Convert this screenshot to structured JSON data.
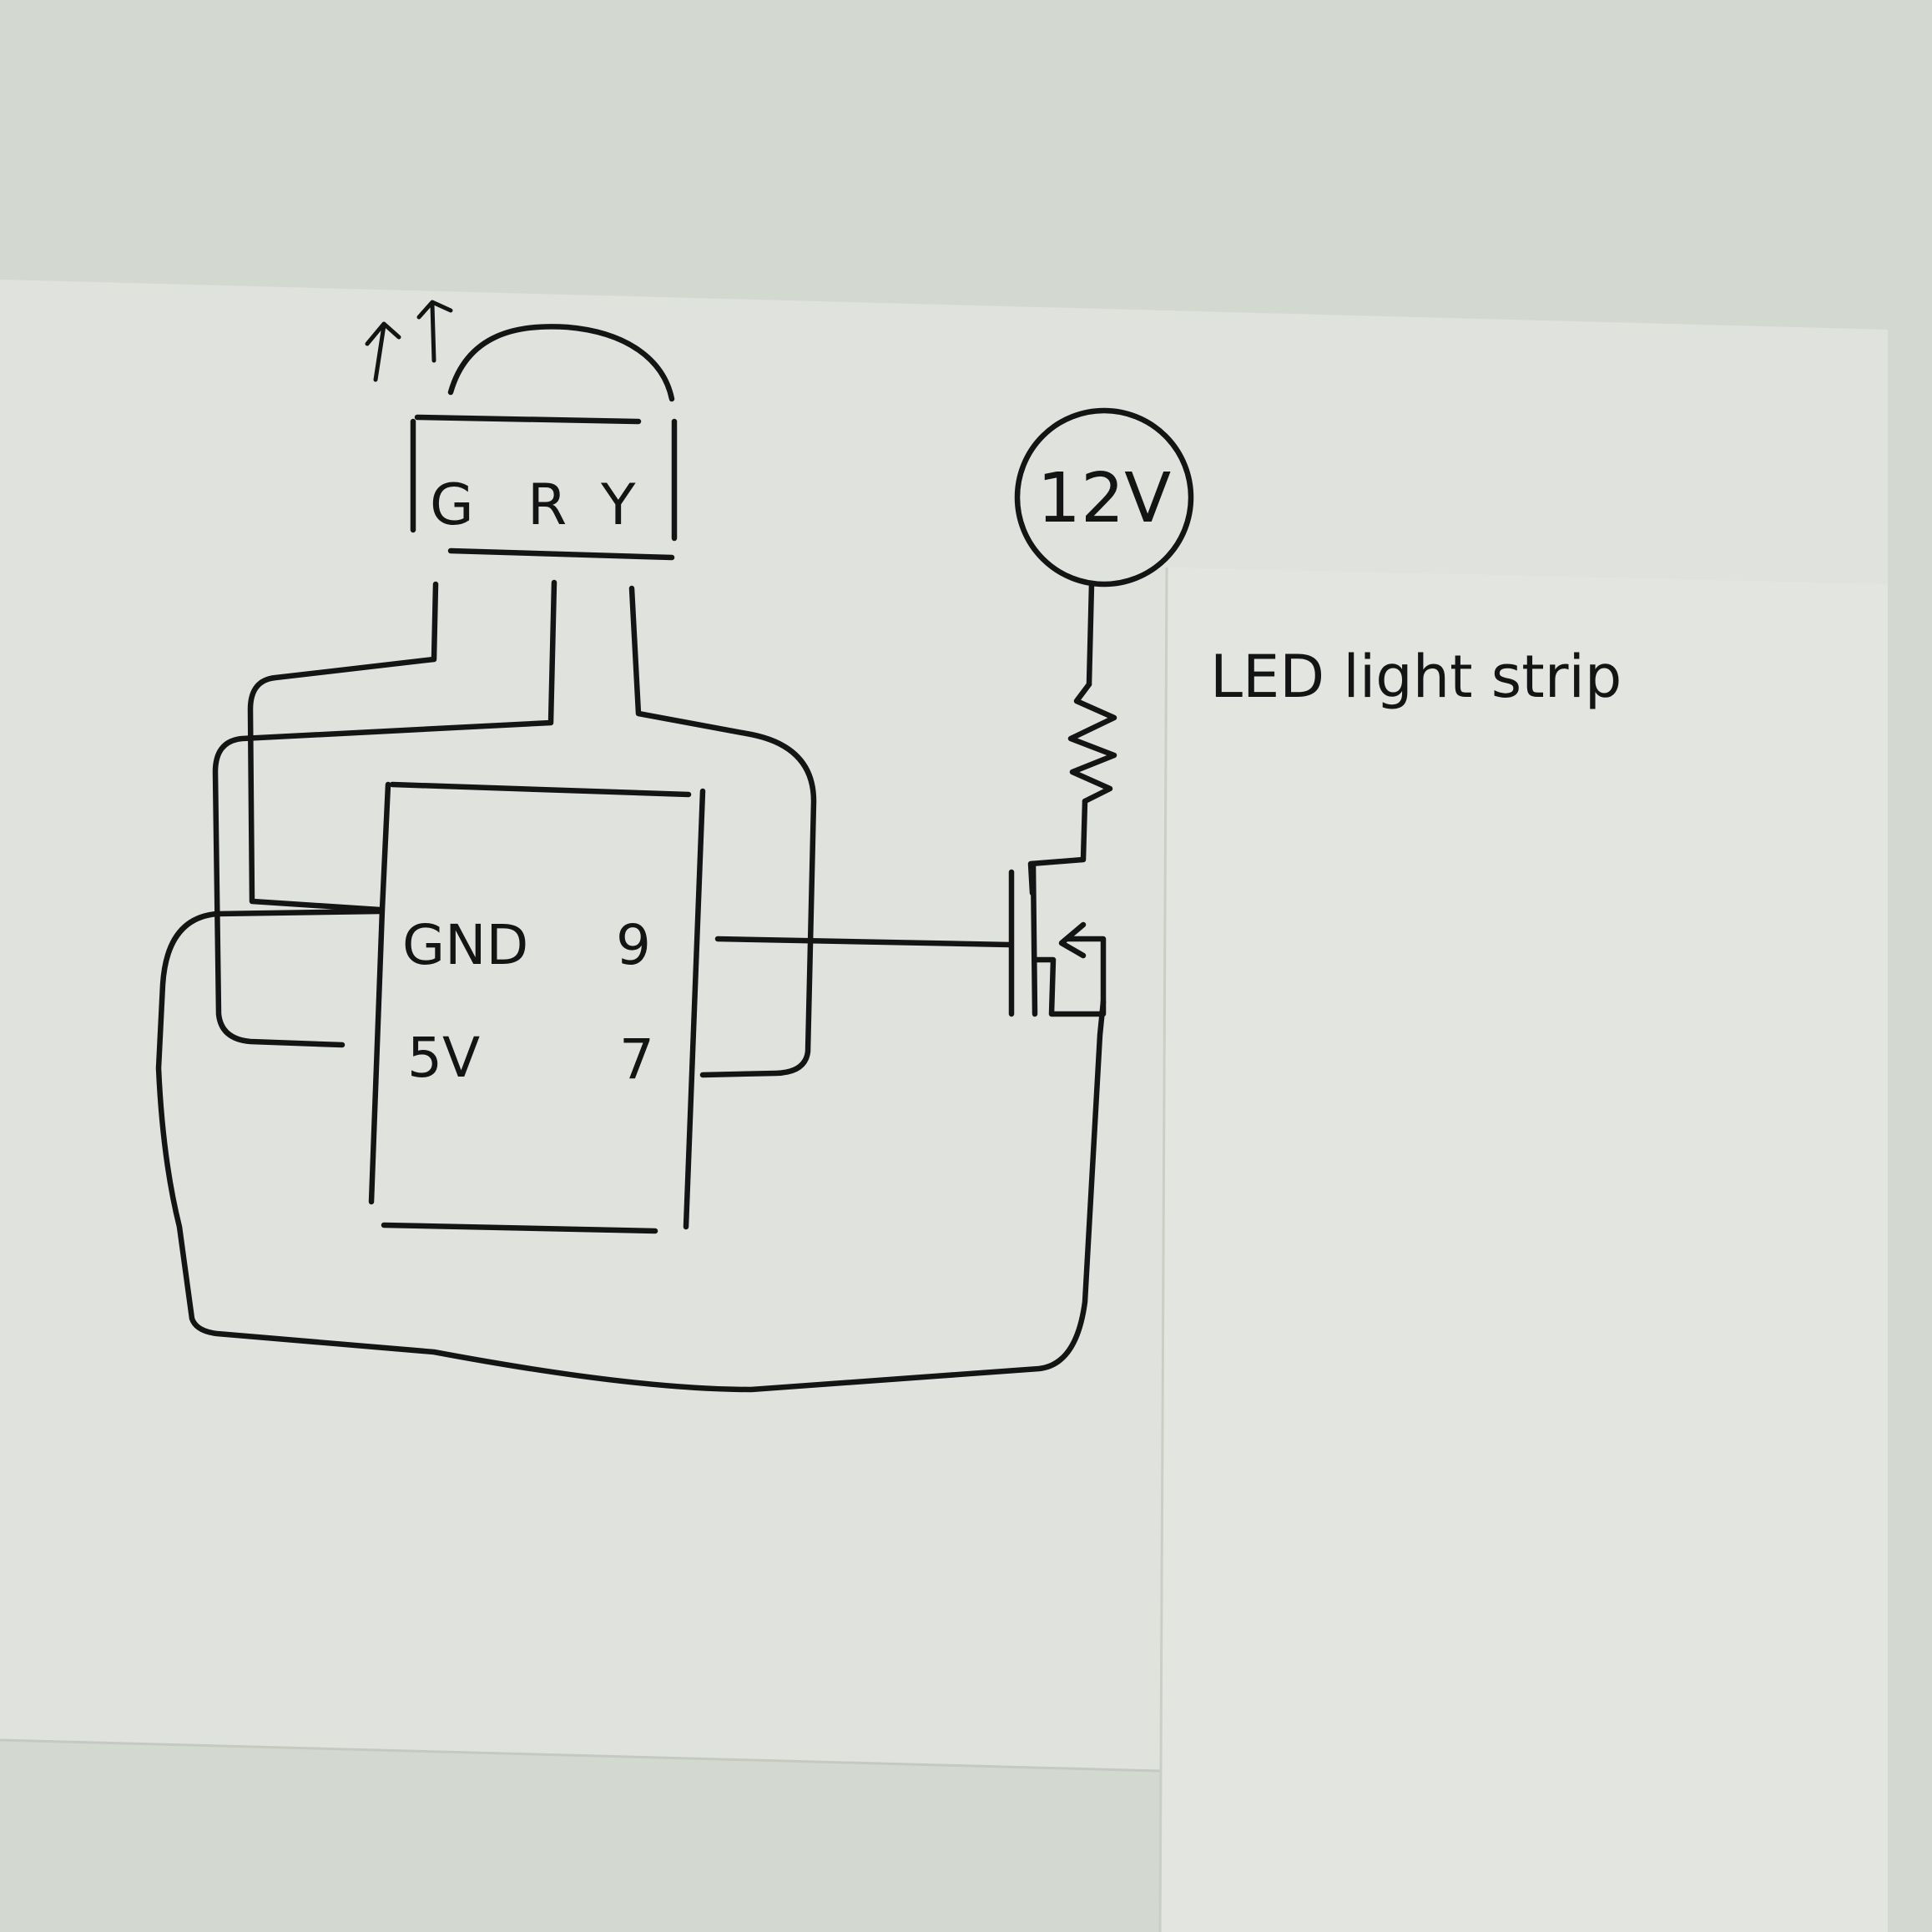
{
  "sensor": {
    "pins": [
      "G",
      "R",
      "Y"
    ]
  },
  "controller": {
    "left_pins": [
      "GND",
      "5V"
    ],
    "right_pins": [
      "9",
      "7"
    ]
  },
  "power": {
    "label": "12V"
  },
  "load": {
    "label": "LED light strip"
  },
  "colors": {
    "ink": "#141414",
    "paper": "#e2e5df"
  }
}
